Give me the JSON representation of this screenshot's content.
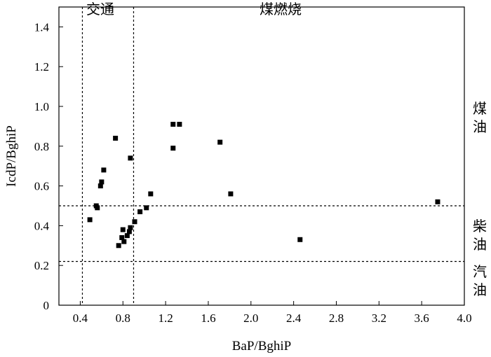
{
  "chart_data": {
    "type": "scatter",
    "title": "",
    "xlabel": "BaP/BghiP",
    "ylabel": "IcdP/BghiP",
    "xlim": [
      0.2,
      4.0
    ],
    "ylim": [
      0,
      1.5
    ],
    "xticks": [
      "0.4",
      "0.8",
      "1.2",
      "1.6",
      "2.0",
      "2.4",
      "2.8",
      "3.2",
      "3.6",
      "4.0"
    ],
    "yticks": [
      "0",
      "0.2",
      "0.4",
      "0.6",
      "0.8",
      "1.0",
      "1.2",
      "1.4"
    ],
    "grid": false,
    "reference_lines": {
      "vertical": [
        0.42,
        0.9
      ],
      "horizontal": [
        0.5,
        0.22
      ]
    },
    "region_labels": {
      "top": [
        "交通",
        "煤燃烧"
      ],
      "right": [
        "煤油",
        "柴油",
        "汽油"
      ]
    },
    "points": [
      {
        "x": 0.49,
        "y": 0.43
      },
      {
        "x": 0.55,
        "y": 0.5
      },
      {
        "x": 0.56,
        "y": 0.49
      },
      {
        "x": 0.59,
        "y": 0.6
      },
      {
        "x": 0.6,
        "y": 0.62
      },
      {
        "x": 0.62,
        "y": 0.68
      },
      {
        "x": 0.73,
        "y": 0.84
      },
      {
        "x": 0.76,
        "y": 0.3
      },
      {
        "x": 0.79,
        "y": 0.34
      },
      {
        "x": 0.8,
        "y": 0.38
      },
      {
        "x": 0.81,
        "y": 0.32
      },
      {
        "x": 0.84,
        "y": 0.35
      },
      {
        "x": 0.86,
        "y": 0.37
      },
      {
        "x": 0.87,
        "y": 0.39
      },
      {
        "x": 0.87,
        "y": 0.74
      },
      {
        "x": 0.91,
        "y": 0.42
      },
      {
        "x": 0.96,
        "y": 0.47
      },
      {
        "x": 1.02,
        "y": 0.49
      },
      {
        "x": 1.06,
        "y": 0.56
      },
      {
        "x": 1.27,
        "y": 0.91
      },
      {
        "x": 1.27,
        "y": 0.79
      },
      {
        "x": 1.33,
        "y": 0.91
      },
      {
        "x": 1.71,
        "y": 0.82
      },
      {
        "x": 1.81,
        "y": 0.56
      },
      {
        "x": 2.46,
        "y": 0.33
      },
      {
        "x": 3.75,
        "y": 0.52
      }
    ]
  }
}
